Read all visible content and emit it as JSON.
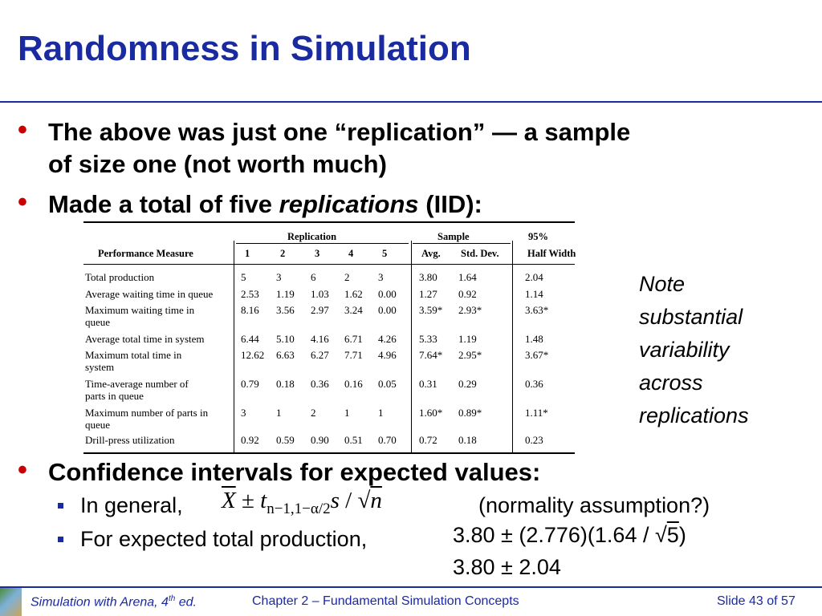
{
  "title": "Randomness in Simulation",
  "bullets": [
    {
      "line1": "The above was just one “replication” — a sample",
      "line2": "of size one (not worth much)"
    },
    {
      "prefix": "Made a total of five ",
      "emph": "replications",
      "suffix": " (IID):"
    },
    {
      "text": "Confidence intervals for expected values:"
    }
  ],
  "subbullets": {
    "general_label": "In general,",
    "general_note": "(normality assumption?)",
    "production_label": "For expected total production,"
  },
  "formula": {
    "X": "X",
    "pm": "±",
    "t": "t",
    "sub": "n−1,1−α/2",
    "s": "s",
    "slash": "/",
    "sqrt": "√",
    "n": "n",
    "line1": "3.80 ± (2.776)(1.64 / ",
    "line1_sqrt": "√",
    "line1_five": "5",
    "line1_end": ")",
    "line2": "3.80 ± 2.04"
  },
  "note_lines": [
    "Note",
    "substantial",
    "variability",
    "across",
    "replications"
  ],
  "table": {
    "group_headers": {
      "replication": "Replication",
      "sample": "Sample",
      "pct": "95%"
    },
    "columns": [
      "Performance Measure",
      "1",
      "2",
      "3",
      "4",
      "5",
      "Avg.",
      "Std. Dev.",
      "Half Width"
    ],
    "rows": [
      {
        "measure": [
          "Total production"
        ],
        "vals": [
          "5",
          "3",
          "6",
          "2",
          "3",
          "3.80",
          "1.64",
          "2.04"
        ]
      },
      {
        "measure": [
          "Average waiting time in queue"
        ],
        "vals": [
          "2.53",
          "1.19",
          "1.03",
          "1.62",
          "0.00",
          "1.27",
          "0.92",
          "1.14"
        ]
      },
      {
        "measure": [
          "Maximum waiting time in",
          "queue"
        ],
        "vals": [
          "8.16",
          "3.56",
          "2.97",
          "3.24",
          "0.00",
          "3.59*",
          "2.93*",
          "3.63*"
        ]
      },
      {
        "measure": [
          "Average total time in system"
        ],
        "vals": [
          "6.44",
          "5.10",
          "4.16",
          "6.71",
          "4.26",
          "5.33",
          "1.19",
          "1.48"
        ]
      },
      {
        "measure": [
          "Maximum total time in",
          "system"
        ],
        "vals": [
          "12.62",
          "6.63",
          "6.27",
          "7.71",
          "4.96",
          "7.64*",
          "2.95*",
          "3.67*"
        ]
      },
      {
        "measure": [
          "Time-average number of",
          "parts in queue"
        ],
        "vals": [
          "0.79",
          "0.18",
          "0.36",
          "0.16",
          "0.05",
          "0.31",
          "0.29",
          "0.36"
        ]
      },
      {
        "measure": [
          "Maximum number of parts in",
          "queue"
        ],
        "vals": [
          "3",
          "1",
          "2",
          "1",
          "1",
          "1.60*",
          "0.89*",
          "1.11*"
        ]
      },
      {
        "measure": [
          "Drill-press utilization"
        ],
        "vals": [
          "0.92",
          "0.59",
          "0.90",
          "0.51",
          "0.70",
          "0.72",
          "0.18",
          "0.23"
        ]
      }
    ]
  },
  "footer": {
    "book": "Simulation with Arena, 4",
    "book_sup": "th",
    "book_end": " ed.",
    "chapter": "Chapter 2 – Fundamental Simulation Concepts",
    "slide": "Slide 43 of 57"
  },
  "colors": {
    "title": "#1a2aa0",
    "bullet": "#cc0000"
  }
}
